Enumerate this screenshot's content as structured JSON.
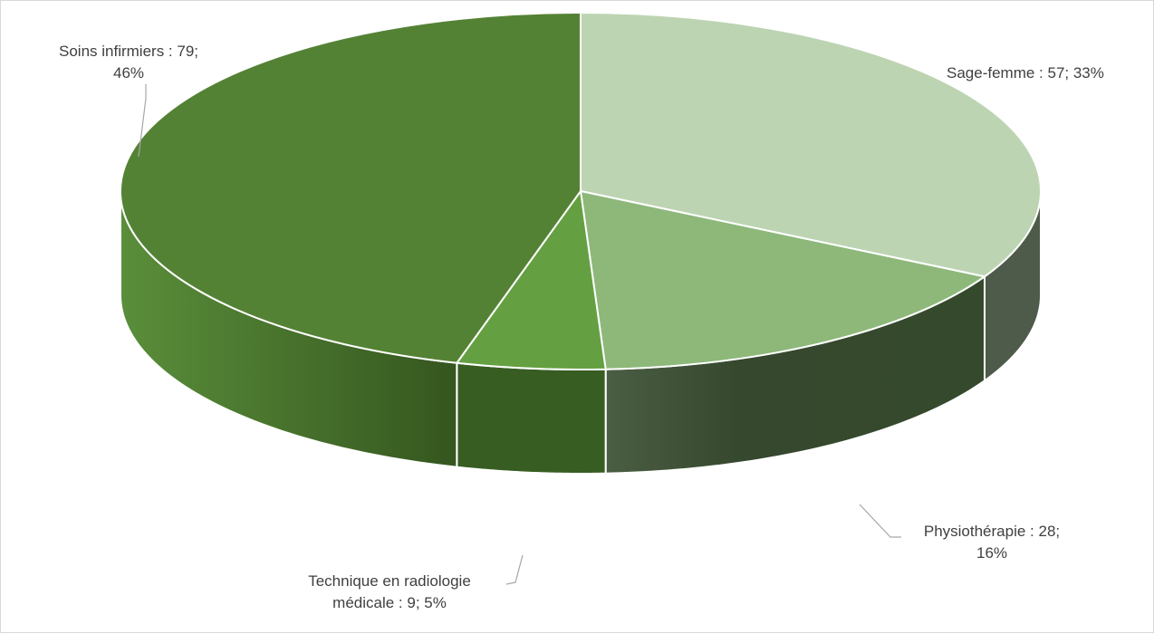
{
  "chart_data": {
    "type": "pie",
    "title": "",
    "legend": "none",
    "slices": [
      {
        "name": "Sage-femme",
        "value": 57,
        "percent": 33,
        "color": "#bcd4b2",
        "side_color": "#4e5a4a",
        "label_lines": [
          "Sage-femme : 57; 33%"
        ]
      },
      {
        "name": "Physiothérapie",
        "value": 28,
        "percent": 16,
        "color": "#8db87a",
        "side_color": "#3a4f31",
        "label_lines": [
          "Physiothérapie : 28;",
          "16%"
        ]
      },
      {
        "name": "Technique en radiologie médicale",
        "value": 9,
        "percent": 5,
        "color": "#64a041",
        "side_color": "#385d22",
        "label_lines": [
          "Technique en radiologie",
          "médicale : 9; 5%"
        ]
      },
      {
        "name": "Soins infirmiers",
        "value": 79,
        "percent": 46,
        "color": "#548235",
        "side_color": "#3f6427",
        "label_lines": [
          "Soins infirmiers : 79;",
          "46%"
        ]
      }
    ]
  }
}
